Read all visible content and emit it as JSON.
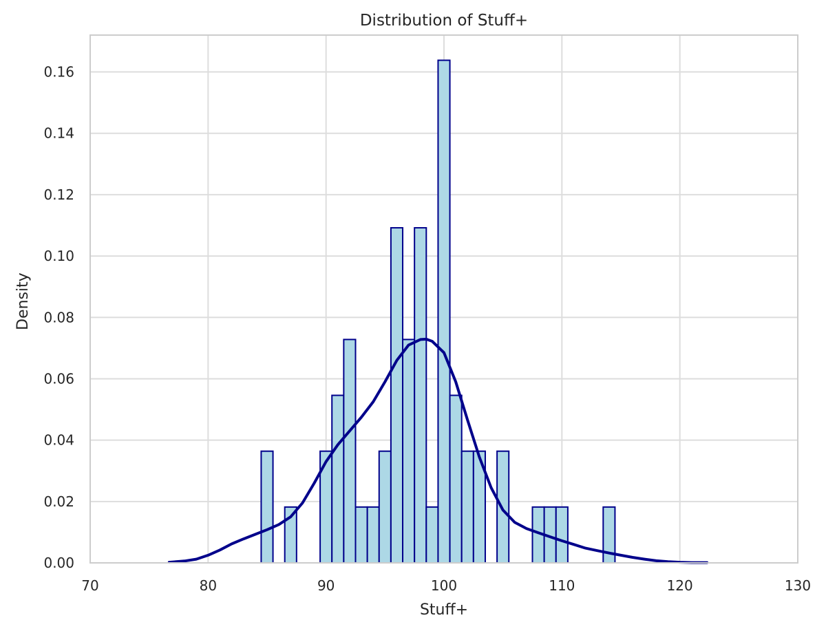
{
  "chart_data": {
    "type": "bar",
    "title": "Distribution of Stuff+",
    "xlabel": "Stuff+",
    "ylabel": "Density",
    "xlim": [
      70,
      130
    ],
    "ylim": [
      0,
      0.172
    ],
    "xticks": [
      "70",
      "80",
      "90",
      "100",
      "110",
      "120",
      "130"
    ],
    "yticks": [
      "0.00",
      "0.02",
      "0.04",
      "0.06",
      "0.08",
      "0.10",
      "0.12",
      "0.14",
      "0.16"
    ],
    "grid": true,
    "bar_fill": "#add8e6",
    "bar_edge": "#00008b",
    "kde_color": "#00008b",
    "histogram": [
      {
        "x0": 84.5,
        "x1": 85.5,
        "density": 0.0364
      },
      {
        "x0": 86.5,
        "x1": 87.5,
        "density": 0.0182
      },
      {
        "x0": 89.5,
        "x1": 90.5,
        "density": 0.0364
      },
      {
        "x0": 90.5,
        "x1": 91.5,
        "density": 0.0546
      },
      {
        "x0": 91.5,
        "x1": 92.5,
        "density": 0.0728
      },
      {
        "x0": 92.5,
        "x1": 93.5,
        "density": 0.0182
      },
      {
        "x0": 93.5,
        "x1": 94.5,
        "density": 0.0182
      },
      {
        "x0": 94.5,
        "x1": 95.5,
        "density": 0.0364
      },
      {
        "x0": 95.5,
        "x1": 96.5,
        "density": 0.1092
      },
      {
        "x0": 96.5,
        "x1": 97.5,
        "density": 0.0728
      },
      {
        "x0": 97.5,
        "x1": 98.5,
        "density": 0.1092
      },
      {
        "x0": 98.5,
        "x1": 99.5,
        "density": 0.0182
      },
      {
        "x0": 99.5,
        "x1": 100.5,
        "density": 0.1638
      },
      {
        "x0": 100.5,
        "x1": 101.5,
        "density": 0.0546
      },
      {
        "x0": 101.5,
        "x1": 102.5,
        "density": 0.0364
      },
      {
        "x0": 102.5,
        "x1": 103.5,
        "density": 0.0364
      },
      {
        "x0": 104.5,
        "x1": 105.5,
        "density": 0.0364
      },
      {
        "x0": 107.5,
        "x1": 108.5,
        "density": 0.0182
      },
      {
        "x0": 108.5,
        "x1": 109.5,
        "density": 0.0182
      },
      {
        "x0": 109.5,
        "x1": 110.5,
        "density": 0.0182
      },
      {
        "x0": 113.5,
        "x1": 114.5,
        "density": 0.0182
      }
    ],
    "kde": {
      "x": [
        76.7,
        78,
        79,
        80,
        81,
        82,
        83,
        84,
        85,
        86,
        87,
        88,
        89,
        90,
        91,
        92,
        93,
        94,
        95,
        96,
        97,
        98,
        98.5,
        99,
        100,
        101,
        102,
        103,
        104,
        105,
        106,
        107,
        108,
        109,
        110,
        111,
        112,
        113,
        114,
        115,
        116,
        117,
        118,
        119,
        120,
        121,
        122.3
      ],
      "y": [
        0.0002,
        0.0006,
        0.0012,
        0.0025,
        0.0042,
        0.0062,
        0.0078,
        0.0093,
        0.0108,
        0.0125,
        0.015,
        0.0195,
        0.026,
        0.033,
        0.0385,
        0.043,
        0.0475,
        0.0525,
        0.059,
        0.066,
        0.071,
        0.0728,
        0.0729,
        0.0722,
        0.0685,
        0.059,
        0.0465,
        0.0345,
        0.0245,
        0.0172,
        0.0132,
        0.0112,
        0.0098,
        0.0085,
        0.0072,
        0.006,
        0.0048,
        0.004,
        0.0032,
        0.0025,
        0.0018,
        0.0012,
        0.0007,
        0.0004,
        0.0002,
        0.0001,
        0.0001
      ]
    }
  }
}
